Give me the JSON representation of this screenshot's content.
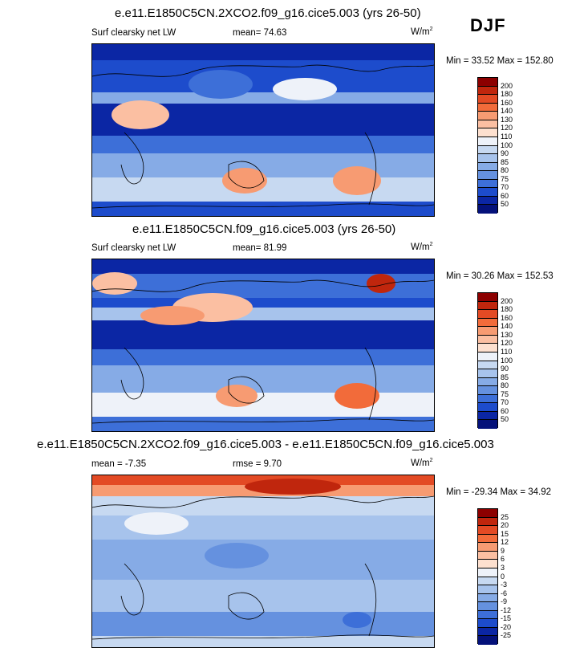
{
  "season": "DJF",
  "panels": [
    {
      "title": "e.e11.E1850C5CN.2XCO2.f09_g16.cice5.003 (yrs 26-50)",
      "left_label": "Surf clearsky net LW",
      "center_label": "mean=  74.63",
      "units": "W/m",
      "units_exp": "2",
      "minmax": "Min =  33.52 Max = 152.80",
      "levels": [
        "200",
        "180",
        "160",
        "140",
        "130",
        "120",
        "110",
        "100",
        "90",
        "85",
        "80",
        "75",
        "70",
        "60",
        "50"
      ],
      "colors": [
        "#8c0000",
        "#c0260d",
        "#e34a24",
        "#f26b3a",
        "#f79b72",
        "#fbbfa2",
        "#fde0cf",
        "#eef2f9",
        "#c7d9f1",
        "#a7c3ec",
        "#86abe6",
        "#6591df",
        "#3d6fd8",
        "#1d4ccc",
        "#0b26a4",
        "#04117a"
      ]
    },
    {
      "title": "e.e11.E1850C5CN.f09_g16.cice5.003 (yrs 26-50)",
      "left_label": "Surf clearsky net LW",
      "center_label": "mean=  81.99",
      "units": "W/m",
      "units_exp": "2",
      "minmax": "Min =  30.26 Max = 152.53",
      "levels": [
        "200",
        "180",
        "160",
        "140",
        "130",
        "120",
        "110",
        "100",
        "90",
        "85",
        "80",
        "75",
        "70",
        "60",
        "50"
      ],
      "colors": [
        "#8c0000",
        "#c0260d",
        "#e34a24",
        "#f26b3a",
        "#f79b72",
        "#fbbfa2",
        "#fde0cf",
        "#eef2f9",
        "#c7d9f1",
        "#a7c3ec",
        "#86abe6",
        "#6591df",
        "#3d6fd8",
        "#1d4ccc",
        "#0b26a4",
        "#04117a"
      ]
    },
    {
      "title": "e.e11.E1850C5CN.2XCO2.f09_g16.cice5.003 - e.e11.E1850C5CN.f09_g16.cice5.003",
      "left_label": "mean = -7.35",
      "center_label": "rmse =  9.70",
      "units": "W/m",
      "units_exp": "2",
      "minmax": "Min = -29.34 Max =  34.92",
      "levels": [
        "25",
        "20",
        "15",
        "12",
        "9",
        "6",
        "3",
        "0",
        "-3",
        "-6",
        "-9",
        "-12",
        "-15",
        "-20",
        "-25"
      ],
      "colors": [
        "#8c0000",
        "#c0260d",
        "#e34a24",
        "#f26b3a",
        "#f79b72",
        "#fbbfa2",
        "#fde0cf",
        "#eef2f9",
        "#c7d9f1",
        "#a7c3ec",
        "#86abe6",
        "#6591df",
        "#3d6fd8",
        "#1d4ccc",
        "#0b26a4",
        "#04117a"
      ]
    }
  ]
}
